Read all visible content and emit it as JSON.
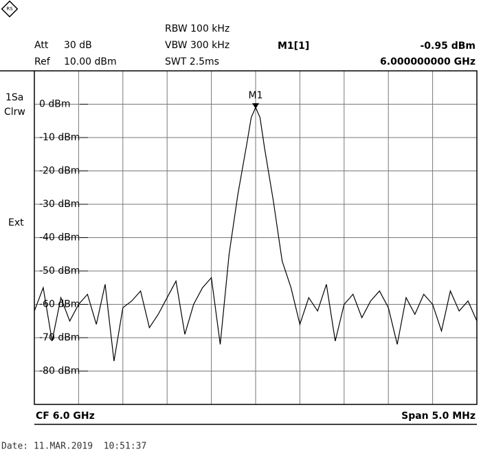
{
  "chart_data": {
    "type": "line",
    "header": {
      "att_label": "Att",
      "att": "30 dB",
      "ref_label": "Ref",
      "ref": "10.00 dBm",
      "rbw": "RBW 100 kHz",
      "vbw": "VBW 300 kHz",
      "swt": "SWT 2.5ms",
      "marker_name": "M1[1]",
      "marker_level": "-0.95 dBm",
      "marker_freq": "6.000000000 GHz"
    },
    "side": {
      "trace_mode": "1Sa",
      "detector": "Clrw",
      "trigger": "Ext"
    },
    "footer": {
      "center": "CF 6.0 GHz",
      "span": "Span 5.0 MHz"
    },
    "date": "Date: 11.MAR.2019  10:51:37",
    "marker": {
      "label": "M1",
      "x": 6000,
      "y": -0.95
    },
    "x": [
      5997.5,
      5997.6,
      5997.7,
      5997.8,
      5997.9,
      5998.0,
      5998.1,
      5998.2,
      5998.3,
      5998.4,
      5998.5,
      5998.6,
      5998.7,
      5998.8,
      5998.9,
      5999.0,
      5999.1,
      5999.2,
      5999.3,
      5999.4,
      5999.5,
      5999.6,
      5999.7,
      5999.8,
      5999.9,
      5999.95,
      6000.0,
      6000.05,
      6000.1,
      6000.2,
      6000.3,
      6000.4,
      6000.5,
      6000.6,
      6000.7,
      6000.8,
      6000.9,
      6001.0,
      6001.1,
      6001.2,
      6001.3,
      6001.4,
      6001.5,
      6001.6,
      6001.7,
      6001.8,
      6001.9,
      6002.0,
      6002.1,
      6002.2,
      6002.3,
      6002.4,
      6002.5
    ],
    "series": [
      {
        "name": "Trace 1",
        "color": "#000000",
        "values": [
          -62,
          -55,
          -71,
          -58,
          -65,
          -60,
          -57,
          -66,
          -54,
          -77,
          -61,
          -59,
          -56,
          -67,
          -63,
          -58,
          -53,
          -69,
          -60,
          -55,
          -52,
          -72,
          -45,
          -27,
          -12,
          -4,
          -0.95,
          -4,
          -13,
          -29,
          -47,
          -55,
          -66,
          -58,
          -62,
          -54,
          -71,
          -60,
          -57,
          -64,
          -59,
          -56,
          -61,
          -72,
          -58,
          -63,
          -57,
          -60,
          -68,
          -56,
          -62,
          -59,
          -65
        ]
      }
    ],
    "xlim": [
      5997.5,
      6002.5
    ],
    "ylim": [
      -90,
      10
    ],
    "yticks": [
      {
        "value": 0,
        "label": "0 dBm"
      },
      {
        "value": -10,
        "label": "-10 dBm"
      },
      {
        "value": -20,
        "label": "-20 dBm"
      },
      {
        "value": -30,
        "label": "-30 dBm"
      },
      {
        "value": -40,
        "label": "-40 dBm"
      },
      {
        "value": -50,
        "label": "-50 dBm"
      },
      {
        "value": -60,
        "label": "-60 dBm"
      },
      {
        "value": -70,
        "label": "-70 dBm"
      },
      {
        "value": -80,
        "label": "-80 dBm"
      }
    ],
    "grid": true
  }
}
